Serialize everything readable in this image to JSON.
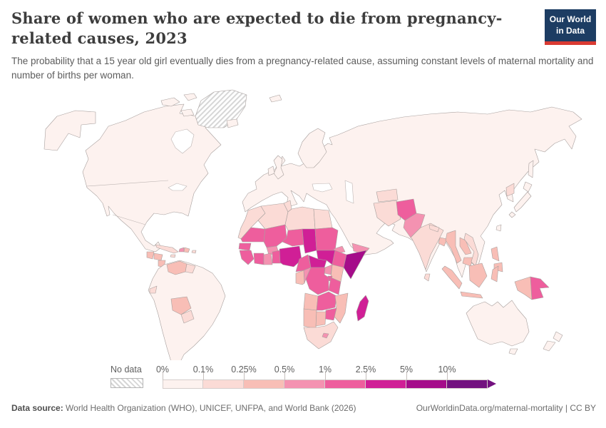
{
  "header": {
    "title": "Share of women who are expected to die from pregnancy-related causes, 2023",
    "subtitle": "The probability that a 15 year old girl eventually dies from a pregnancy-related cause, assuming constant levels of maternal mortality and number of births per woman.",
    "logo": {
      "line1": "Our World",
      "line2": "in Data"
    }
  },
  "legend": {
    "no_data_label": "No data"
  },
  "footer": {
    "source_label": "Data source:",
    "source_text": " World Health Organization (WHO), UNICEF, UNFPA, and World Bank (2026)",
    "link_text": "OurWorldinData.org/maternal-mortality | CC BY"
  },
  "colors": {
    "logo_bg": "#1d3d63",
    "logo_accent": "#d93a32",
    "title": "#3d3d3d",
    "subtitle": "#5c5c5c",
    "footer": "#6d6d6d",
    "map_border": "#a8a09e",
    "no_data_hatch": "#d6d6d6"
  },
  "chart_data": {
    "type": "heatmap",
    "subtype": "world-choropleth",
    "title": "Share of women who are expected to die from pregnancy-related causes, 2023",
    "unit": "%",
    "legend_position": "bottom",
    "bucket_tick_labels": [
      "0%",
      "0.1%",
      "0.25%",
      "0.5%",
      "1%",
      "2.5%",
      "5%",
      "10%"
    ],
    "bucket_ranges": [
      "0-0.1%",
      "0.1-0.25%",
      "0.25-0.5%",
      "0.5-1%",
      "1-2.5%",
      "2.5-5%",
      "5-10%",
      "10%+"
    ],
    "bucket_colors": [
      "#fdf2ef",
      "#fbdbd6",
      "#f8beb6",
      "#f492b1",
      "#ee5e9d",
      "#d01f96",
      "#a50c8a",
      "#73117f"
    ],
    "no_data_regions": [
      "greenland"
    ],
    "region_buckets": {
      "north-america": 0,
      "alaska": 0,
      "arctic-islands": 0,
      "south-america": 0,
      "eurasia": 0,
      "scandinavia": 0,
      "uk": 0,
      "ireland": 0,
      "iceland": 0,
      "svalbard": 0,
      "japan": 0,
      "sakhalin": 0,
      "taiwan": 0,
      "australia": 0,
      "tasmania": 0,
      "new-zealand": 0,
      "morocco": 1,
      "algeria": 1,
      "tunisia": 1,
      "libya": 1,
      "egypt": 1,
      "iran": 1,
      "turkmenistan": 1,
      "india": 1,
      "nepal": 1,
      "sri-lanka": 1,
      "vietnam": 1,
      "north-korea": 1,
      "cuba": 1,
      "jamaica": 1,
      "puerto-rico": 1,
      "guyana": 1,
      "ecuador": 1,
      "paraguay": 1,
      "costa-rica": 1,
      "panama": 1,
      "south-africa": 1,
      "venezuela": 2,
      "bolivia": 2,
      "guatemala": 2,
      "honduras": 2,
      "nicaragua": 2,
      "dominican-republic": 2,
      "kenya": 2,
      "mozambique": 2,
      "namibia": 2,
      "botswana": 2,
      "angola": 2,
      "gabon": 2,
      "myanmar": 2,
      "laos": 2,
      "cambodia": 2,
      "bangladesh": 2,
      "indonesia": 2,
      "philippines": 2,
      "west-new-guinea": 2,
      "haiti": 3,
      "yemen": 3,
      "pakistan": 3,
      "burkina-faso": 3,
      "ghana": 3,
      "eritrea": 3,
      "uganda": 3,
      "congo": 3,
      "lesotho": 3,
      "afghanistan": 4,
      "mauritania": 4,
      "mali": 4,
      "niger": 4,
      "sudan": 4,
      "senegal": 4,
      "guinea": 4,
      "cote-divoire": 4,
      "benin-togo": 4,
      "cameroon": 4,
      "drc": 4,
      "tanzania": 4,
      "zimbabwe": 4,
      "zambia": 4,
      "ethiopia": 4,
      "rwanda-burundi": 4,
      "papua-new-guinea": 4,
      "chad": 5,
      "nigeria": 5,
      "south-sudan": 5,
      "central-african-republic": 5,
      "madagascar": 5,
      "somalia": 6
    }
  }
}
